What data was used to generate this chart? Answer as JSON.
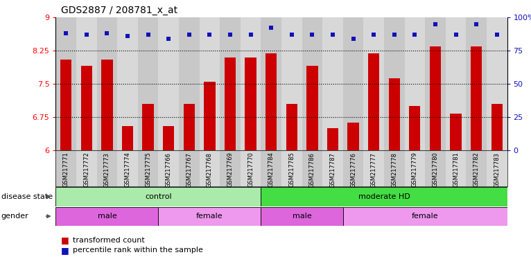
{
  "title": "GDS2887 / 208781_x_at",
  "samples": [
    "GSM217771",
    "GSM217772",
    "GSM217773",
    "GSM217774",
    "GSM217775",
    "GSM217766",
    "GSM217767",
    "GSM217768",
    "GSM217769",
    "GSM217770",
    "GSM217784",
    "GSM217785",
    "GSM217786",
    "GSM217787",
    "GSM217776",
    "GSM217777",
    "GSM217778",
    "GSM217779",
    "GSM217780",
    "GSM217781",
    "GSM217782",
    "GSM217783"
  ],
  "bar_values": [
    8.05,
    7.9,
    8.05,
    6.55,
    7.05,
    6.55,
    7.05,
    7.55,
    8.1,
    8.1,
    8.18,
    7.05,
    7.9,
    6.5,
    6.62,
    8.18,
    7.62,
    7.0,
    8.35,
    6.82,
    8.35,
    7.05
  ],
  "dot_values": [
    88,
    87,
    88,
    86,
    87,
    84,
    87,
    87,
    87,
    87,
    92,
    87,
    87,
    87,
    84,
    87,
    87,
    87,
    95,
    87,
    95,
    87
  ],
  "bar_color": "#cc0000",
  "dot_color": "#1111bb",
  "ylim_left": [
    6.0,
    9.0
  ],
  "ylim_right": [
    0,
    100
  ],
  "yticks_left": [
    6.0,
    6.75,
    7.5,
    8.25,
    9.0
  ],
  "yticks_right": [
    0,
    25,
    50,
    75,
    100
  ],
  "ytick_labels_left": [
    "6",
    "6.75",
    "7.5",
    "8.25",
    "9"
  ],
  "ytick_labels_right": [
    "0",
    "25",
    "50",
    "75",
    "100%"
  ],
  "hlines": [
    6.75,
    7.5,
    8.25
  ],
  "disease_state_groups": [
    {
      "label": "control",
      "start": 0,
      "end": 10,
      "color": "#aaeaaa"
    },
    {
      "label": "moderate HD",
      "start": 10,
      "end": 22,
      "color": "#44dd44"
    }
  ],
  "gender_groups": [
    {
      "label": "male",
      "start": 0,
      "end": 5,
      "color": "#dd66dd"
    },
    {
      "label": "female",
      "start": 5,
      "end": 10,
      "color": "#ee99ee"
    },
    {
      "label": "male",
      "start": 10,
      "end": 14,
      "color": "#dd66dd"
    },
    {
      "label": "female",
      "start": 14,
      "end": 22,
      "color": "#ee99ee"
    }
  ],
  "disease_label": "disease state",
  "gender_label": "gender",
  "bar_width": 0.55,
  "tick_box_colors": [
    "#c8c8c8",
    "#d8d8d8"
  ]
}
